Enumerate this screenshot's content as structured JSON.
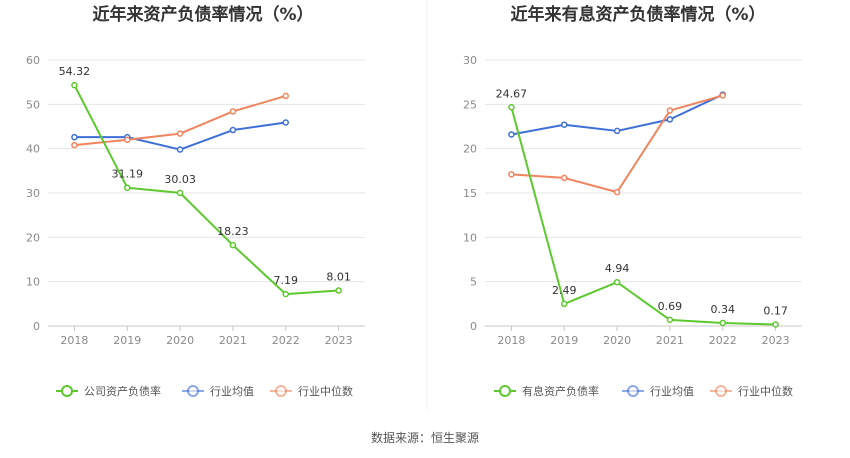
{
  "source_text": "数据来源：恒生聚源",
  "chart_data": [
    {
      "type": "line",
      "title": "近年来资产负债率情况（%）",
      "categories": [
        "2018",
        "2019",
        "2020",
        "2021",
        "2022",
        "2023"
      ],
      "ylim": [
        0,
        60
      ],
      "yticks": [
        "0",
        "10",
        "20",
        "30",
        "40",
        "50",
        "60"
      ],
      "grid": true,
      "legend_position": "bottom",
      "series": [
        {
          "name": "公司资产负债率",
          "color": "#5dc92f",
          "labeled": true,
          "values": [
            54.32,
            31.19,
            30.03,
            18.23,
            7.19,
            8.01
          ],
          "labels": [
            "54.32",
            "31.19",
            "30.03",
            "18.23",
            "7.19",
            "8.01"
          ]
        },
        {
          "name": "行业均值",
          "color": "#3f6fd8",
          "labeled": false,
          "values": [
            42.6,
            42.6,
            39.8,
            44.2,
            45.9,
            null
          ]
        },
        {
          "name": "行业中位数",
          "color": "#f0845e",
          "labeled": false,
          "values": [
            40.8,
            42.0,
            43.4,
            48.4,
            51.9,
            null
          ]
        }
      ]
    },
    {
      "type": "line",
      "title": "近年来有息资产负债率情况（%）",
      "categories": [
        "2018",
        "2019",
        "2020",
        "2021",
        "2022",
        "2023"
      ],
      "ylim": [
        0,
        30
      ],
      "yticks": [
        "0",
        "5",
        "10",
        "15",
        "20",
        "25",
        "30"
      ],
      "grid": true,
      "legend_position": "bottom",
      "series": [
        {
          "name": "有息资产负债率",
          "color": "#5dc92f",
          "labeled": true,
          "values": [
            24.67,
            2.49,
            4.94,
            0.69,
            0.34,
            0.17
          ],
          "labels": [
            "24.67",
            "2.49",
            "4.94",
            "0.69",
            "0.34",
            "0.17"
          ]
        },
        {
          "name": "行业均值",
          "color": "#3f6fd8",
          "labeled": false,
          "values": [
            21.6,
            22.7,
            22.0,
            23.3,
            26.1,
            null
          ]
        },
        {
          "name": "行业中位数",
          "color": "#f0845e",
          "labeled": false,
          "values": [
            17.1,
            16.7,
            15.1,
            24.3,
            26.0,
            null
          ]
        }
      ]
    }
  ]
}
